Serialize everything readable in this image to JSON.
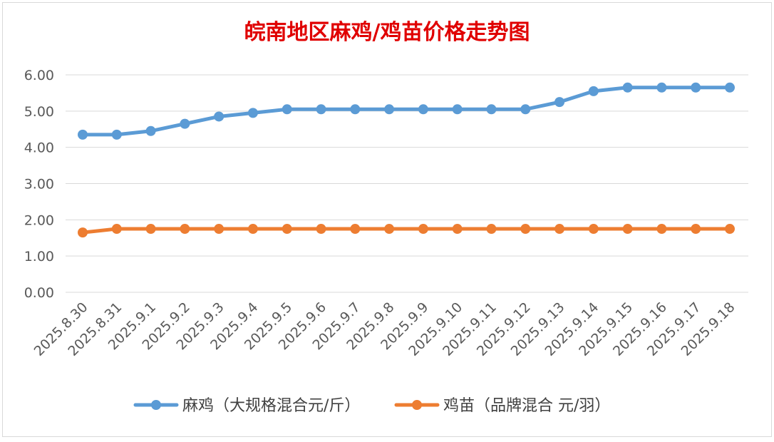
{
  "chart_data": {
    "type": "line",
    "title": "皖南地区麻鸡/鸡苗价格走势图",
    "categories": [
      "2025.8.30",
      "2025.8.31",
      "2025.9.1",
      "2025.9.2",
      "2025.9.3",
      "2025.9.4",
      "2025.9.5",
      "2025.9.6",
      "2025.9.7",
      "2025.9.8",
      "2025.9.9",
      "2025.9.10",
      "2025.9.11",
      "2025.9.12",
      "2025.9.13",
      "2025.9.14",
      "2025.9.15",
      "2025.9.16",
      "2025.9.17",
      "2025.9.18"
    ],
    "yticks": [
      "0.00",
      "1.00",
      "2.00",
      "3.00",
      "4.00",
      "5.00",
      "6.00"
    ],
    "ylim": [
      0,
      6
    ],
    "grid": true,
    "legend_position": "bottom",
    "series": [
      {
        "name": "麻鸡（大规格混合元/斤）",
        "color": "#5B9BD5",
        "values": [
          4.35,
          4.35,
          4.45,
          4.65,
          4.85,
          4.95,
          5.05,
          5.05,
          5.05,
          5.05,
          5.05,
          5.05,
          5.05,
          5.05,
          5.25,
          5.55,
          5.65,
          5.65,
          5.65,
          5.65
        ]
      },
      {
        "name": "鸡苗（品牌混合 元/羽）",
        "color": "#ED7D31",
        "values": [
          1.65,
          1.75,
          1.75,
          1.75,
          1.75,
          1.75,
          1.75,
          1.75,
          1.75,
          1.75,
          1.75,
          1.75,
          1.75,
          1.75,
          1.75,
          1.75,
          1.75,
          1.75,
          1.75,
          1.75
        ]
      }
    ],
    "title_color": "#E00000"
  }
}
